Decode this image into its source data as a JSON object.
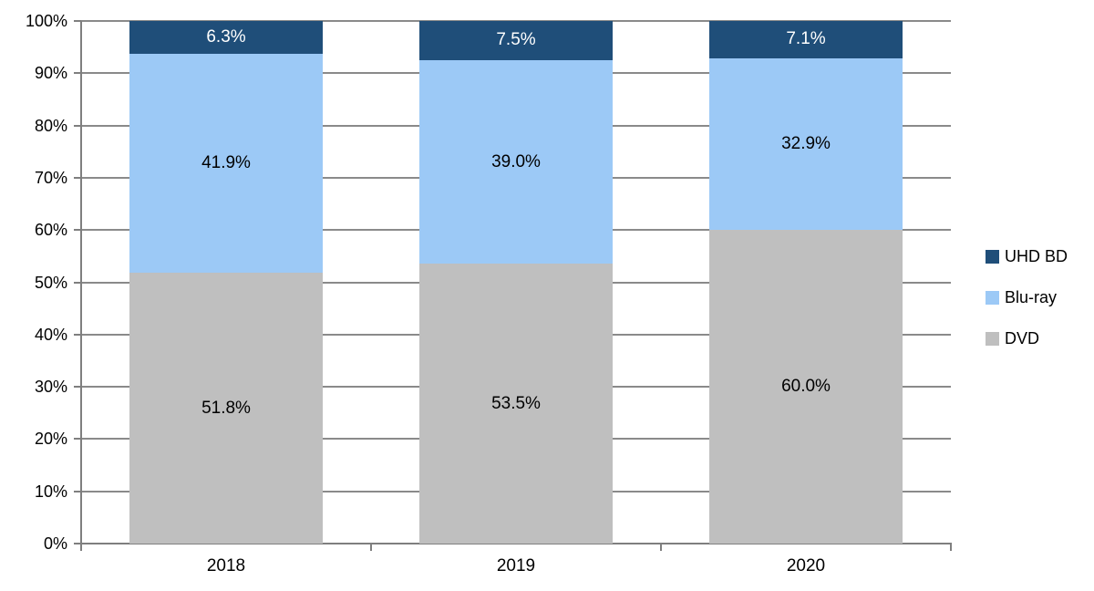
{
  "chart_data": {
    "type": "bar",
    "stacked": true,
    "title": "",
    "categories": [
      "2018",
      "2019",
      "2020"
    ],
    "series": [
      {
        "name": "DVD",
        "color": "#BFBFBF",
        "label_color": "#000000",
        "values": [
          51.8,
          53.5,
          60.0
        ],
        "labels": [
          "51.8%",
          "53.5%",
          "60.0%"
        ]
      },
      {
        "name": "Blu-ray",
        "color": "#9CC9F6",
        "label_color": "#000000",
        "values": [
          41.9,
          39.0,
          32.9
        ],
        "labels": [
          "41.9%",
          "39.0%",
          "32.9%"
        ]
      },
      {
        "name": "UHD BD",
        "color": "#1F4E79",
        "label_color": "#FFFFFF",
        "values": [
          6.3,
          7.5,
          7.1
        ],
        "labels": [
          "6.3%",
          "7.5%",
          "7.1%"
        ]
      }
    ],
    "xlabel": "",
    "ylabel": "",
    "ylim": [
      0,
      100
    ],
    "y_ticks": [
      "0%",
      "10%",
      "20%",
      "30%",
      "40%",
      "50%",
      "60%",
      "70%",
      "80%",
      "90%",
      "100%"
    ],
    "grid": true,
    "legend_position": "right",
    "legend_order_top_to_bottom": [
      "UHD BD",
      "Blu-ray",
      "DVD"
    ],
    "style": {
      "gridline_color": "#8A8A8A",
      "axis_color": "#7F7F7F",
      "text_color": "#000000",
      "background": "#FFFFFF"
    }
  }
}
